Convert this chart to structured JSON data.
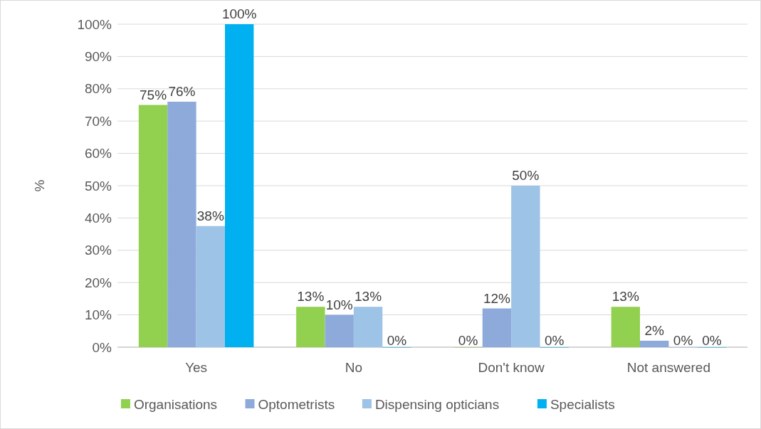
{
  "chart_data": {
    "type": "bar",
    "ylabel": "%",
    "categories": [
      "Yes",
      "No",
      "Don't know",
      "Not answered"
    ],
    "series": [
      {
        "name": "Organisations",
        "color": "#92d050",
        "values": [
          75,
          12.5,
          0,
          12.5
        ],
        "value_labels": [
          "75%",
          "13%",
          "0%",
          "13%"
        ]
      },
      {
        "name": "Optometrists",
        "color": "#8eaadb",
        "values": [
          76,
          10,
          12,
          2
        ],
        "value_labels": [
          "76%",
          "10%",
          "12%",
          "2%"
        ]
      },
      {
        "name": "Dispensing opticians",
        "color": "#9dc3e6",
        "values": [
          37.5,
          12.5,
          50,
          0
        ],
        "value_labels": [
          "38%",
          "13%",
          "50%",
          "0%"
        ]
      },
      {
        "name": "Specialists",
        "color": "#00b0f0",
        "values": [
          100,
          0,
          0,
          0
        ],
        "value_labels": [
          "100%",
          "0%",
          "0%",
          "0%"
        ]
      }
    ],
    "ylim": [
      0,
      100
    ],
    "yticks": [
      {
        "value": 0,
        "label": "0%"
      },
      {
        "value": 10,
        "label": "10%"
      },
      {
        "value": 20,
        "label": "20%"
      },
      {
        "value": 30,
        "label": "30%"
      },
      {
        "value": 40,
        "label": "40%"
      },
      {
        "value": 50,
        "label": "50%"
      },
      {
        "value": 60,
        "label": "60%"
      },
      {
        "value": 70,
        "label": "70%"
      },
      {
        "value": 80,
        "label": "80%"
      },
      {
        "value": 90,
        "label": "90%"
      },
      {
        "value": 100,
        "label": "100%"
      }
    ],
    "grid": "y",
    "legend": "bottom"
  }
}
